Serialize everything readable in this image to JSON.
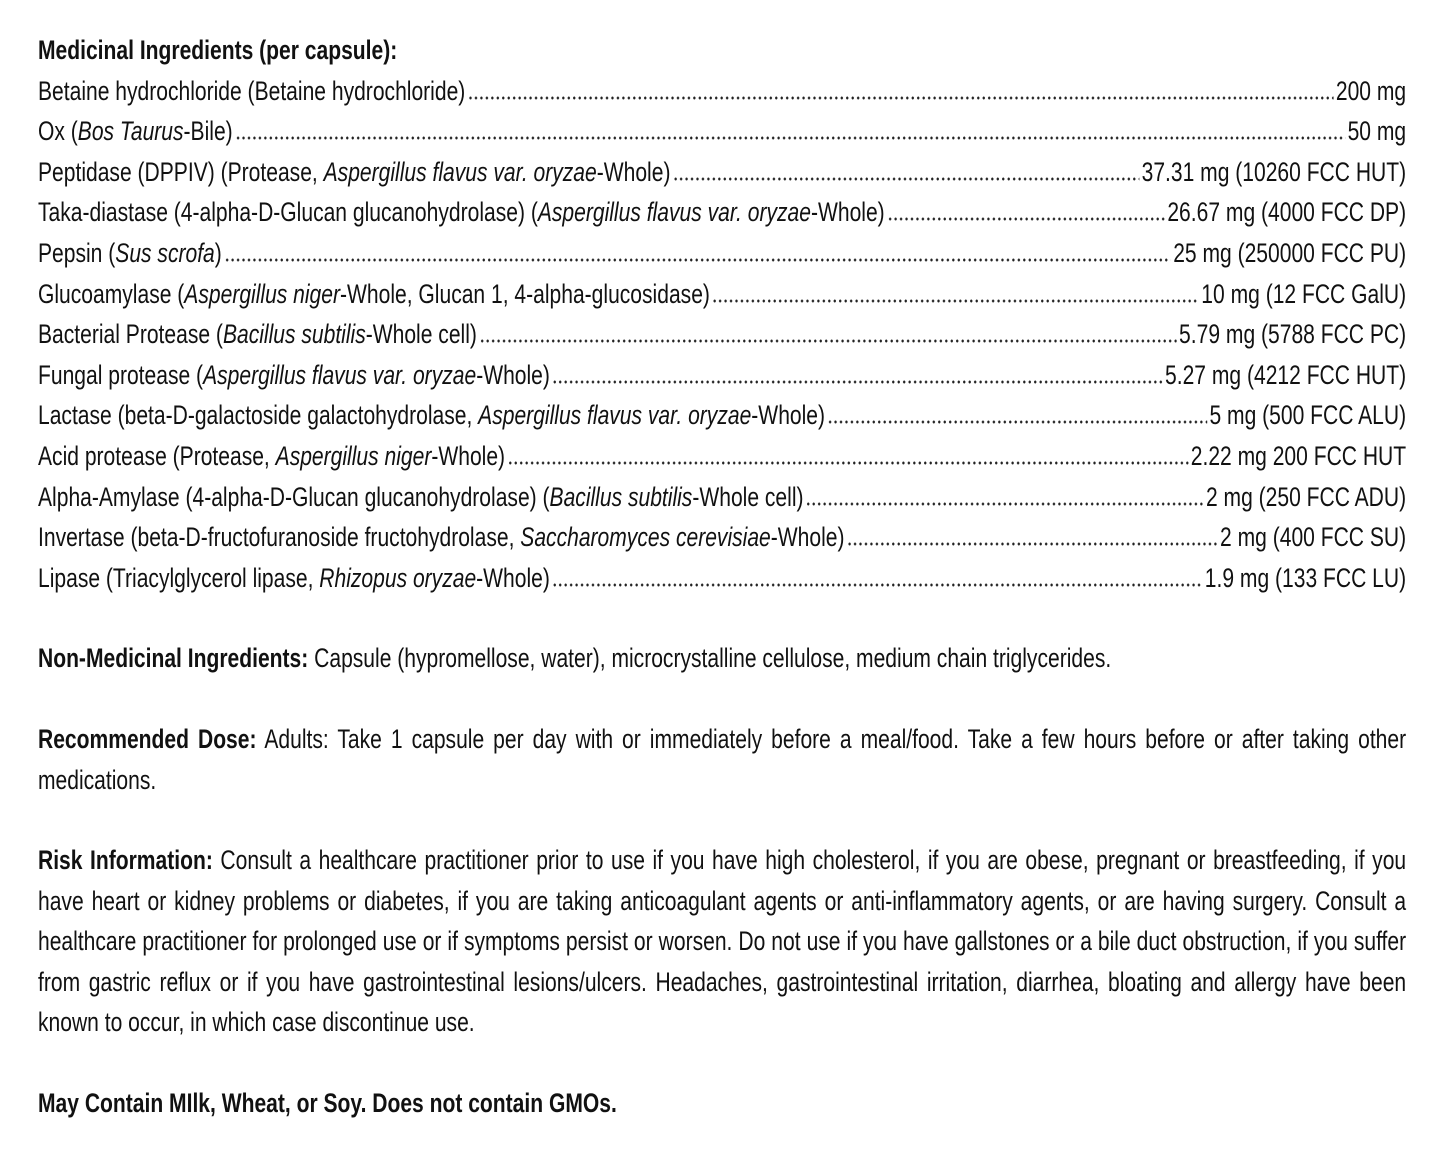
{
  "medicinal": {
    "heading": "Medicinal Ingredients (per capsule):",
    "items": [
      {
        "pre": "Betaine hydrochloride (Betaine hydrochloride)",
        "it": "",
        "post": "",
        "amount": "200 mg"
      },
      {
        "pre": "Ox (",
        "it": "Bos Taurus",
        "post": "-Bile)",
        "amount": "50 mg"
      },
      {
        "pre": "Peptidase (DPPIV) (Protease, ",
        "it": "Aspergillus flavus var. oryzae",
        "post": "-Whole)",
        "amount": "37.31 mg (10260 FCC HUT)"
      },
      {
        "pre": "Taka-diastase (4-alpha-D-Glucan glucanohydrolase) (",
        "it": "Aspergillus flavus var. oryzae",
        "post": "-Whole)",
        "amount": "26.67 mg (4000 FCC DP)"
      },
      {
        "pre": "Pepsin (",
        "it": "Sus scrofa",
        "post": ")",
        "amount": "25 mg (250000 FCC PU)"
      },
      {
        "pre": "Glucoamylase (",
        "it": "Aspergillus niger",
        "post": "-Whole, Glucan 1, 4-alpha-glucosidase)",
        "amount": "10 mg (12 FCC GalU)"
      },
      {
        "pre": "Bacterial Protease (",
        "it": "Bacillus subtilis",
        "post": "-Whole cell)",
        "amount": "5.79 mg (5788 FCC PC)"
      },
      {
        "pre": "Fungal protease (",
        "it": "Aspergillus flavus var. oryzae",
        "post": "-Whole)",
        "amount": "5.27 mg (4212 FCC HUT)"
      },
      {
        "pre": "Lactase (beta-D-galactoside galactohydrolase, ",
        "it": "Aspergillus flavus var. oryzae",
        "post": "-Whole)",
        "amount": "5 mg (500 FCC ALU)"
      },
      {
        "pre": "Acid protease (Protease, ",
        "it": "Aspergillus niger",
        "post": "-Whole)",
        "amount": "2.22 mg 200 FCC HUT"
      },
      {
        "pre": "Alpha-Amylase (4-alpha-D-Glucan glucanohydrolase) (",
        "it": "Bacillus subtilis",
        "post": "-Whole cell)",
        "amount": "2 mg (250 FCC ADU)"
      },
      {
        "pre": "Invertase (beta-D-fructofuranoside fructohydrolase, ",
        "it": "Saccharomyces cerevisiae",
        "post": "-Whole)",
        "amount": "2 mg (400 FCC SU)"
      },
      {
        "pre": "Lipase (Triacylglycerol lipase, ",
        "it": "Rhizopus oryzae",
        "post": "-Whole)",
        "amount": "1.9 mg (133 FCC LU)"
      }
    ]
  },
  "non_medicinal": {
    "label": "Non-Medicinal Ingredients:",
    "text": " Capsule (hypromellose, water), microcrystalline cellulose, medium chain triglycerides."
  },
  "dose": {
    "label": "Recommended Dose:",
    "text": " Adults: Take 1 capsule per day with or immediately before a meal/food. Take a few hours before or after taking other medications."
  },
  "risk": {
    "label": "Risk Information:",
    "text": " Consult a healthcare practitioner prior to use if you have high cholesterol, if you are obese, pregnant or breastfeeding, if you have heart or kidney problems or diabetes, if you are taking anticoagulant agents or anti-inflammatory agents, or are having surgery. Consult a healthcare practitioner for prolonged use or if symptoms persist or worsen. Do not use if you have gallstones or a bile duct obstruction, if you suffer from gastric reflux or if you have gastrointestinal lesions/ulcers. Headaches, gastrointestinal irritation, diarrhea, bloating and allergy have been known to occur, in which case discontinue use."
  },
  "allergen": "May Contain MIlk, Wheat, or Soy. Does not contain GMOs."
}
